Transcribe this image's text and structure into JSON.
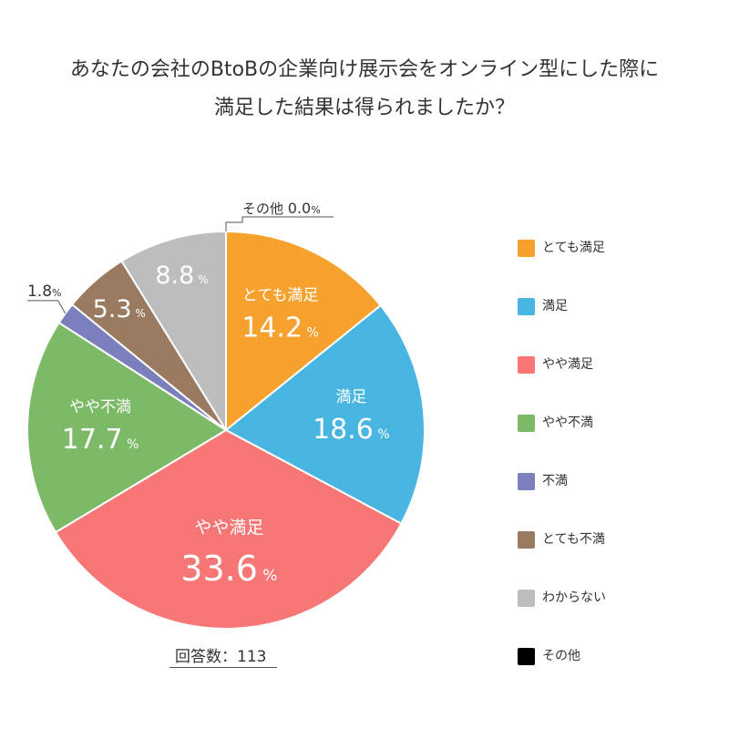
{
  "title_lines": [
    "あなたの会社のBtoBの企業向け展示会をオンライン型にした際に",
    "満足した結果は得られましたか？"
  ],
  "respondents_label": "回答数：113",
  "chart_data": {
    "type": "pie",
    "title": "あなたの会社のBtoBの企業向け展示会をオンライン型にした際に満足した結果は得られましたか？",
    "unit": "%",
    "legend_position": "right",
    "slices": [
      {
        "label": "とても満足",
        "value": 14.2,
        "value_text": "14.2",
        "color": "#F7A12E",
        "show_name": true
      },
      {
        "label": "満足",
        "value": 18.6,
        "value_text": "18.6",
        "color": "#48B6E0",
        "show_name": true
      },
      {
        "label": "やや満足",
        "value": 33.6,
        "value_text": "33.6",
        "color": "#F67775",
        "show_name": true
      },
      {
        "label": "やや不満",
        "value": 17.7,
        "value_text": "17.7",
        "color": "#7DBA67",
        "show_name": true
      },
      {
        "label": "不満",
        "value": 1.8,
        "value_text": "1.8",
        "color": "#7B80BC",
        "show_name": false
      },
      {
        "label": "とても不満",
        "value": 5.3,
        "value_text": "5.3",
        "color": "#9A7B62",
        "show_name": false
      },
      {
        "label": "わからない",
        "value": 8.8,
        "value_text": "8.8",
        "color": "#BDBDBD",
        "show_name": false
      },
      {
        "label": "その他",
        "value": 0.0,
        "value_text": "0.0",
        "color": "#000000",
        "show_name": false
      }
    ]
  }
}
